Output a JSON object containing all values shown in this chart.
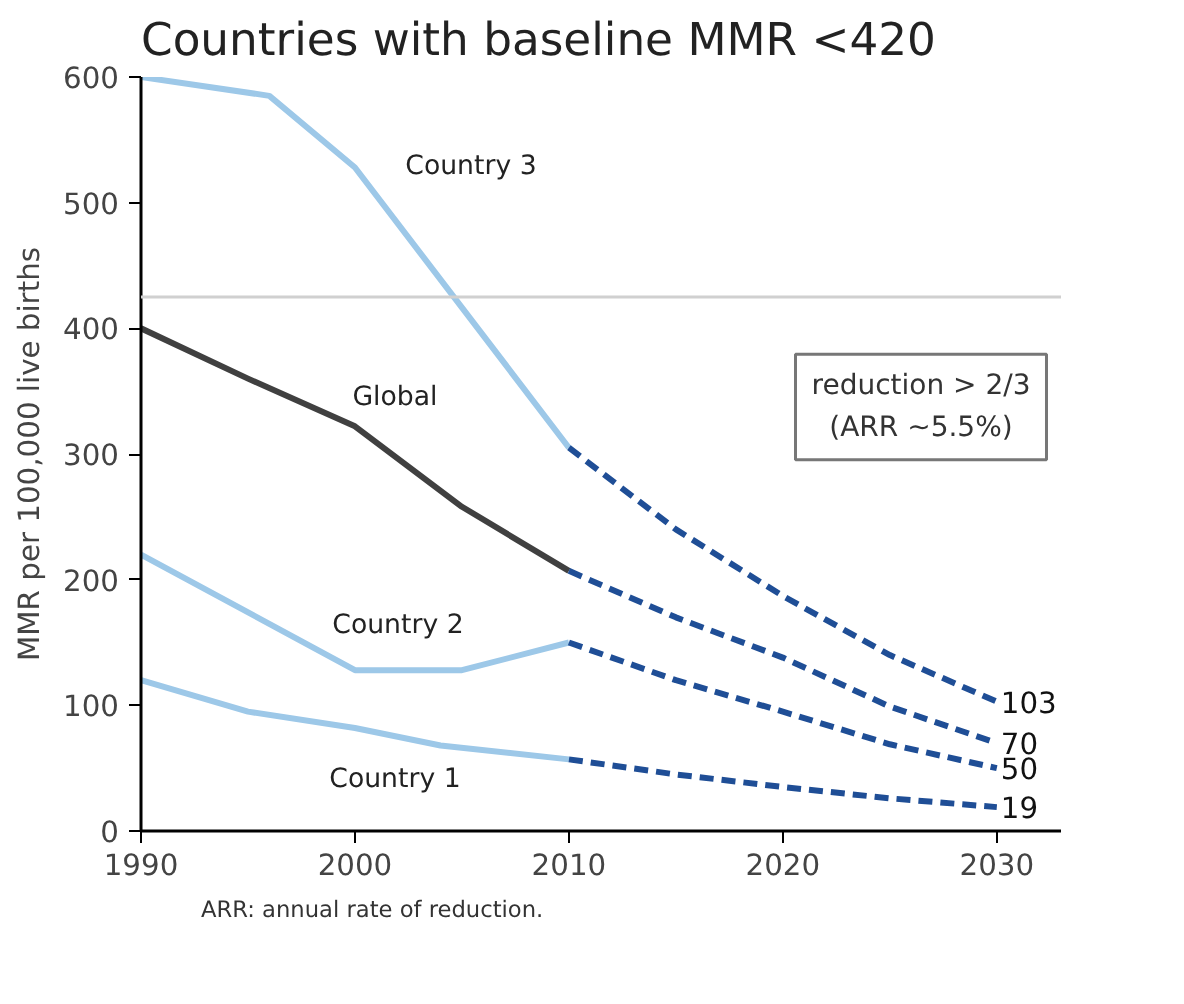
{
  "chart_data": {
    "type": "line",
    "title": "Countries with baseline MMR <420",
    "ylabel": "MMR per 100,000 live births",
    "xlim": [
      1990,
      2033
    ],
    "xticks": [
      1990,
      2000,
      2010,
      2020,
      2030
    ],
    "ylim": [
      0,
      600
    ],
    "yticks": [
      0,
      100,
      200,
      300,
      400,
      500,
      600
    ],
    "grid": false,
    "line_style": "solid",
    "series": [
      {
        "name": "Country 3",
        "color": "#9dc8e8",
        "x": [
          1990,
          1996,
          2000,
          2010
        ],
        "values": [
          600,
          585,
          528,
          305
        ]
      },
      {
        "name": "Global",
        "color": "#404040",
        "x": [
          1990,
          1995,
          2000,
          2005,
          2010
        ],
        "values": [
          400,
          360,
          322,
          258,
          207
        ]
      },
      {
        "name": "Country 2",
        "color": "#9dc8e8",
        "x": [
          1990,
          2000,
          2005,
          2010
        ],
        "values": [
          220,
          128,
          128,
          150
        ]
      },
      {
        "name": "Country 1",
        "color": "#9dc8e8",
        "x": [
          1990,
          1995,
          2000,
          2004,
          2010
        ],
        "values": [
          120,
          95,
          82,
          68,
          57
        ]
      },
      {
        "color": "#1f4e96",
        "line_style": "dashed",
        "x": [
          2010,
          2015,
          2020,
          2025,
          2030
        ],
        "values": [
          305,
          240,
          187,
          140,
          103
        ],
        "value_labels": [
          null,
          null,
          null,
          null,
          "103"
        ]
      },
      {
        "color": "#1f4e96",
        "line_style": "dashed",
        "x": [
          2010,
          2015,
          2020,
          2025,
          2030
        ],
        "values": [
          207,
          170,
          138,
          99,
          70
        ],
        "value_labels": [
          null,
          null,
          null,
          null,
          "70"
        ]
      },
      {
        "color": "#1f4e96",
        "line_style": "dashed",
        "x": [
          2010,
          2015,
          2020,
          2025,
          2030
        ],
        "values": [
          150,
          120,
          95,
          69,
          50
        ],
        "value_labels": [
          null,
          null,
          null,
          null,
          "50"
        ]
      },
      {
        "color": "#1f4e96",
        "line_style": "dashed",
        "x": [
          2010,
          2015,
          2020,
          2025,
          2030
        ],
        "values": [
          57,
          45,
          35,
          26,
          19
        ],
        "value_labels": [
          null,
          null,
          null,
          null,
          "19"
        ]
      }
    ],
    "ref_lines": [
      {
        "axis": "y",
        "value": 425,
        "color": "#d0d0d0"
      }
    ],
    "annotations": [
      "reduction > 2/3\n(ARR ~5.5%)",
      "ARR: annual rate of reduction."
    ]
  }
}
